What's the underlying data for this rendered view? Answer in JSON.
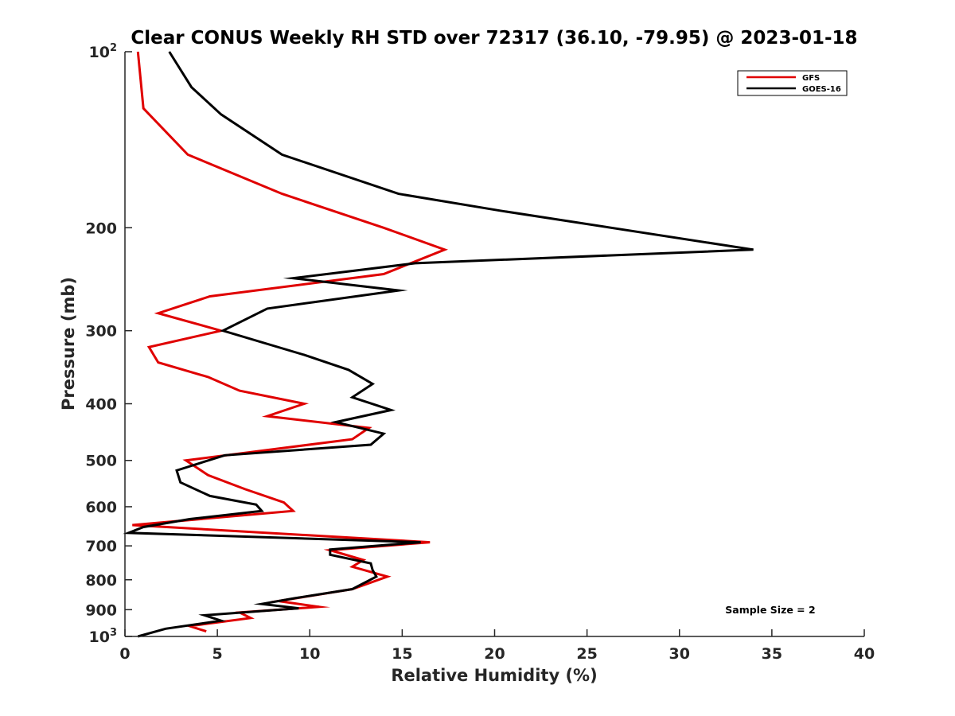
{
  "chart_data": {
    "type": "line",
    "title": "Clear CONUS Weekly RH STD over 72317 (36.10, -79.95) @ 2023-01-18",
    "xlabel": "Relative Humidity (%)",
    "ylabel": "Pressure (mb)",
    "xlim": [
      0,
      40
    ],
    "ylim": [
      100,
      1000
    ],
    "y_scale": "log",
    "y_reversed": true,
    "x_ticks": [
      "0",
      "5",
      "10",
      "15",
      "20",
      "25",
      "30",
      "35",
      "40"
    ],
    "y_ticks": [
      {
        "base": "10",
        "exp": "2"
      },
      {
        "base": "200",
        "exp": ""
      },
      {
        "base": "300",
        "exp": ""
      },
      {
        "base": "400",
        "exp": ""
      },
      {
        "base": "500",
        "exp": ""
      },
      {
        "base": "600",
        "exp": ""
      },
      {
        "base": "700",
        "exp": ""
      },
      {
        "base": "800",
        "exp": ""
      },
      {
        "base": "900",
        "exp": ""
      },
      {
        "base": "10",
        "exp": "3"
      }
    ],
    "grid": false,
    "legend_position": "top-right",
    "annotation": "Sample Size = 2",
    "series": [
      {
        "name": "GFS",
        "color": "#e00000",
        "points": [
          [
            0.7,
            100
          ],
          [
            1.0,
            125
          ],
          [
            3.4,
            150
          ],
          [
            8.5,
            175
          ],
          [
            14.0,
            200
          ],
          [
            17.3,
            218
          ],
          [
            14.0,
            240
          ],
          [
            4.6,
            262
          ],
          [
            1.8,
            280
          ],
          [
            5.2,
            300
          ],
          [
            1.3,
            320
          ],
          [
            1.8,
            340
          ],
          [
            4.5,
            360
          ],
          [
            6.2,
            380
          ],
          [
            9.7,
            400
          ],
          [
            7.7,
            420
          ],
          [
            13.2,
            440
          ],
          [
            12.3,
            460
          ],
          [
            3.3,
            500
          ],
          [
            4.5,
            530
          ],
          [
            6.5,
            560
          ],
          [
            8.6,
            590
          ],
          [
            9.1,
            610
          ],
          [
            0.4,
            645
          ],
          [
            16.5,
            690
          ],
          [
            11.1,
            712
          ],
          [
            12.9,
            740
          ],
          [
            12.3,
            760
          ],
          [
            14.2,
            790
          ],
          [
            12.3,
            830
          ],
          [
            8.3,
            870
          ],
          [
            10.5,
            890
          ],
          [
            6.2,
            910
          ],
          [
            6.8,
            930
          ],
          [
            3.5,
            960
          ],
          [
            4.4,
            980
          ]
        ]
      },
      {
        "name": "GOES-16",
        "color": "#000000",
        "points": [
          [
            2.4,
            100
          ],
          [
            3.6,
            115
          ],
          [
            5.2,
            128
          ],
          [
            8.5,
            150
          ],
          [
            14.8,
            175
          ],
          [
            20.3,
            187
          ],
          [
            34.0,
            218
          ],
          [
            15.7,
            230
          ],
          [
            9.1,
            244
          ],
          [
            14.8,
            256
          ],
          [
            7.7,
            275
          ],
          [
            5.3,
            300
          ],
          [
            9.7,
            330
          ],
          [
            12.1,
            350
          ],
          [
            13.4,
            370
          ],
          [
            12.3,
            390
          ],
          [
            14.4,
            410
          ],
          [
            11.4,
            430
          ],
          [
            14.0,
            450
          ],
          [
            13.3,
            470
          ],
          [
            5.4,
            490
          ],
          [
            2.8,
            520
          ],
          [
            3.0,
            545
          ],
          [
            4.6,
            575
          ],
          [
            7.1,
            595
          ],
          [
            7.4,
            610
          ],
          [
            3.5,
            630
          ],
          [
            1.0,
            650
          ],
          [
            0.2,
            665
          ],
          [
            16.0,
            690
          ],
          [
            11.1,
            710
          ],
          [
            11.1,
            725
          ],
          [
            13.3,
            750
          ],
          [
            13.4,
            770
          ],
          [
            13.6,
            790
          ],
          [
            12.3,
            830
          ],
          [
            9.2,
            860
          ],
          [
            7.4,
            880
          ],
          [
            9.4,
            895
          ],
          [
            4.3,
            920
          ],
          [
            5.2,
            940
          ],
          [
            2.2,
            970
          ],
          [
            0.7,
            1000
          ]
        ]
      }
    ]
  }
}
